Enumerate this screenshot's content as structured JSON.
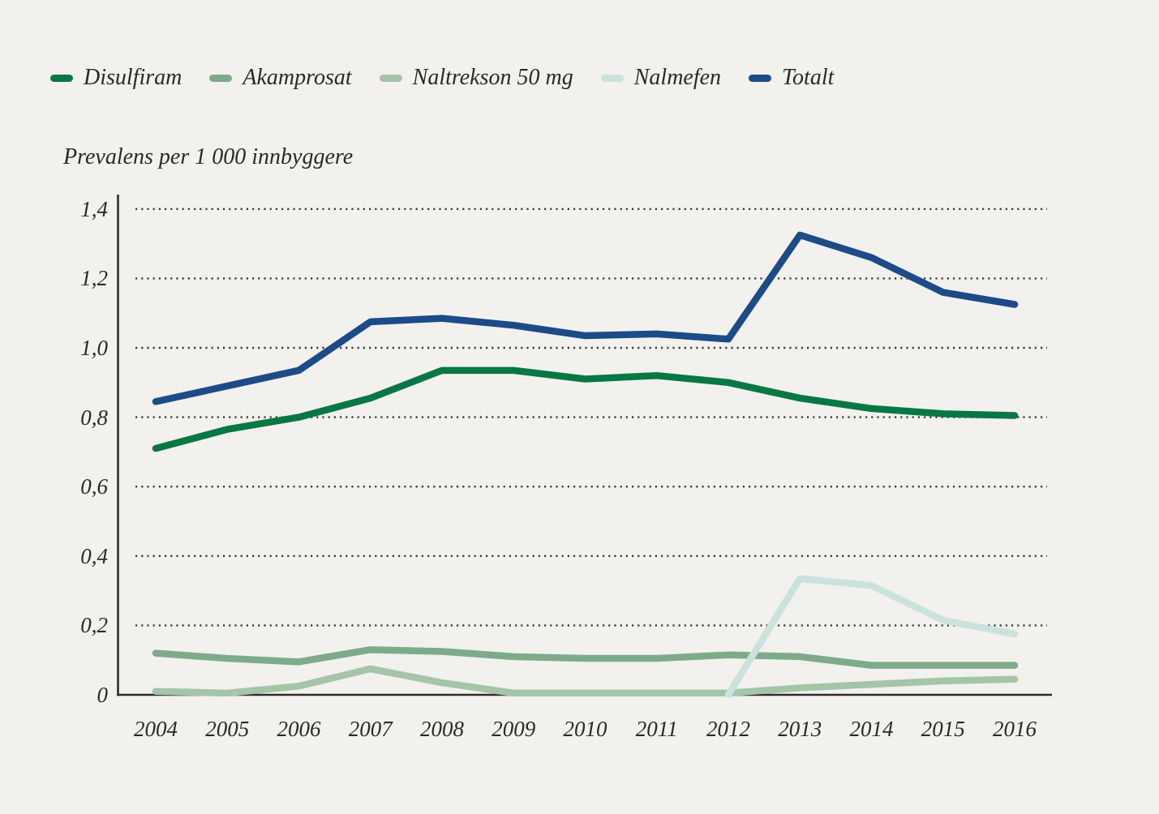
{
  "page": {
    "background_color": "#f2f1ee",
    "text_color": "#2b2927"
  },
  "legend": {
    "items": [
      {
        "label": "Disulfiram",
        "color": "#077745"
      },
      {
        "label": "Akamprosat",
        "color": "#7dab8a"
      },
      {
        "label": "Naltrekson 50 mg",
        "color": "#a4c5a7"
      },
      {
        "label": "Nalmefen",
        "color": "#cbe2dc"
      },
      {
        "label": "Totalt",
        "color": "#1c4b87"
      }
    ]
  },
  "chart_data": {
    "type": "line",
    "title": "Prevalens per 1 000 innbyggere",
    "xlabel": "",
    "ylabel": "Prevalens per 1 000 innbyggere",
    "x": [
      2004,
      2005,
      2006,
      2007,
      2008,
      2009,
      2010,
      2011,
      2012,
      2013,
      2014,
      2015,
      2016
    ],
    "x_tick_labels": [
      "2004",
      "2005",
      "2006",
      "2007",
      "2008",
      "2009",
      "2010",
      "2011",
      "2012",
      "2013",
      "2014",
      "2015",
      "2016"
    ],
    "ylim": [
      0,
      1.4
    ],
    "y_ticks": [
      0,
      0.2,
      0.4,
      0.6,
      0.8,
      1.0,
      1.2,
      1.4
    ],
    "y_tick_labels": [
      "0",
      "0,2",
      "0,4",
      "0,6",
      "0,8",
      "1,0",
      "1,2",
      "1,4"
    ],
    "grid": "horizontal-dotted",
    "grid_color": "#3b3a38",
    "axis_color": "#2d2c2a",
    "legend_position": "top",
    "series": [
      {
        "name": "Disulfiram",
        "color": "#077745",
        "values": [
          0.71,
          0.765,
          0.8,
          0.855,
          0.935,
          0.935,
          0.91,
          0.92,
          0.9,
          0.855,
          0.825,
          0.81,
          0.805
        ]
      },
      {
        "name": "Akamprosat",
        "color": "#7dab8a",
        "values": [
          0.12,
          0.105,
          0.095,
          0.13,
          0.125,
          0.11,
          0.105,
          0.105,
          0.115,
          0.11,
          0.085,
          0.085,
          0.085
        ]
      },
      {
        "name": "Naltrekson 50 mg",
        "color": "#a4c5a7",
        "values": [
          0.01,
          0.005,
          0.025,
          0.075,
          0.035,
          0.005,
          0.005,
          0.005,
          0.005,
          0.02,
          0.03,
          0.04,
          0.045
        ]
      },
      {
        "name": "Nalmefen",
        "color": "#cbe2dc",
        "values": [
          null,
          null,
          null,
          null,
          null,
          null,
          null,
          null,
          0,
          0.335,
          0.315,
          0.215,
          0.175
        ]
      },
      {
        "name": "Totalt",
        "color": "#1c4b87",
        "values": [
          0.845,
          0.89,
          0.935,
          1.075,
          1.085,
          1.065,
          1.035,
          1.04,
          1.025,
          1.325,
          1.26,
          1.16,
          1.125
        ]
      }
    ]
  }
}
